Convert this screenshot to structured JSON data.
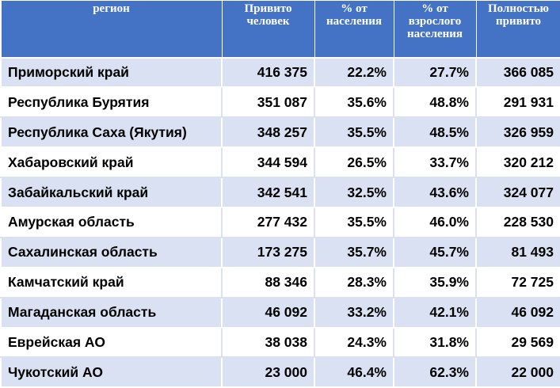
{
  "headers": [
    "регион",
    "Привито человек",
    "% от населения",
    "% от взрослого населения",
    "Полностью привито"
  ],
  "rows": [
    [
      "Приморский край",
      "416 375",
      "22.2%",
      "27.7%",
      "366 085"
    ],
    [
      "Республика Бурятия",
      "351 087",
      "35.6%",
      "48.8%",
      "291 931"
    ],
    [
      "Республика Саха (Якутия)",
      "348 257",
      "35.5%",
      "48.5%",
      "326 959"
    ],
    [
      "Хабаровский край",
      "344 594",
      "26.5%",
      "33.7%",
      "320 212"
    ],
    [
      "Забайкальский край",
      "342 541",
      "32.5%",
      "43.6%",
      "324 077"
    ],
    [
      "Амурская область",
      "277 432",
      "35.5%",
      "46.0%",
      "228 530"
    ],
    [
      "Сахалинская область",
      "173 275",
      "35.7%",
      "45.7%",
      "81 493"
    ],
    [
      "Камчатский край",
      "88 346",
      "28.3%",
      "35.9%",
      "72 725"
    ],
    [
      "Магаданская область",
      "46 092",
      "33.2%",
      "42.1%",
      "46 092"
    ],
    [
      "Еврейская АО",
      "38 038",
      "24.3%",
      "31.8%",
      "29 569"
    ],
    [
      "Чукотский АО",
      "23 000",
      "46.4%",
      "62.3%",
      "22 000"
    ]
  ],
  "colors": {
    "header_bg": "#4472c4",
    "header_text": "#ffffff",
    "band": "#d9e1f2"
  }
}
